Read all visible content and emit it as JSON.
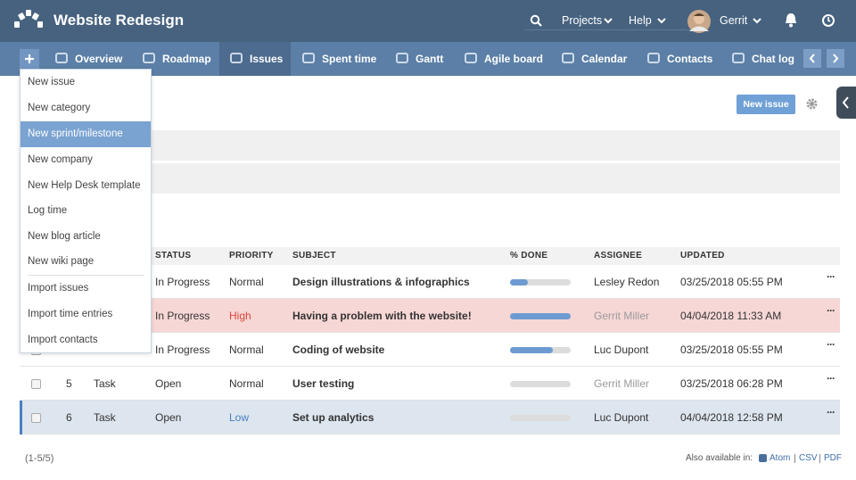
{
  "header": {
    "title": "Website Redesign",
    "menu": [
      "Projects",
      "Help"
    ],
    "user": "Gerrit"
  },
  "nav": {
    "tabs": [
      "Overview",
      "Roadmap",
      "Issues",
      "Spent time",
      "Gantt",
      "Agile board",
      "Calendar",
      "Contacts",
      "Chat log"
    ],
    "active": 2
  },
  "dropdown": {
    "items": [
      "New issue",
      "New category",
      "New sprint/milestone",
      "New company",
      "New Help Desk template",
      "Log time",
      "New blog article",
      "New wiki page"
    ],
    "import_items": [
      "Import issues",
      "Import time entries",
      "Import contacts"
    ],
    "highlighted": 2
  },
  "toolbar": {
    "new_issue": "New issue"
  },
  "table": {
    "columns": [
      "STATUS",
      "PRIORITY",
      "SUBJECT",
      "% DONE",
      "ASSIGNEE",
      "UPDATED"
    ],
    "rows": [
      {
        "status": "In Progress",
        "priority": "Normal",
        "subject": "Design illustrations & infographics",
        "done": 30,
        "assignee": "Lesley Redon",
        "updated": "03/25/2018 05:55 PM"
      },
      {
        "status": "In Progress",
        "priority": "High",
        "priority_color": "#d9463c",
        "subject": "Having a problem with the website!",
        "done": 100,
        "assignee": "Gerrit Miller",
        "assignee_color": "#9a9a9a",
        "updated": "04/04/2018 11:33 AM",
        "row_color": "#f7d7d5"
      },
      {
        "status": "In Progress",
        "priority": "Normal",
        "subject": "Coding of website",
        "done": 70,
        "assignee": "Luc Dupont",
        "updated": "03/25/2018 05:55 PM"
      },
      {
        "id": "5",
        "tracker": "Task",
        "status": "Open",
        "priority": "Normal",
        "subject": "User testing",
        "done": 0,
        "assignee": "Gerrit Miller",
        "assignee_color": "#9a9a9a",
        "updated": "03/25/2018 06:28 PM"
      },
      {
        "id": "6",
        "tracker": "Task",
        "status": "Open",
        "priority": "Low",
        "priority_color": "#4a7fc1",
        "subject": "Set up analytics",
        "done": 0,
        "assignee": "Luc Dupont",
        "updated": "04/04/2018 12:58 PM",
        "row_color": "#dde5ee",
        "selected": true
      }
    ]
  },
  "footer": {
    "count": "(1-5/5)",
    "also": "Also available in:",
    "formats": [
      "Atom",
      "CSV",
      "PDF"
    ]
  }
}
